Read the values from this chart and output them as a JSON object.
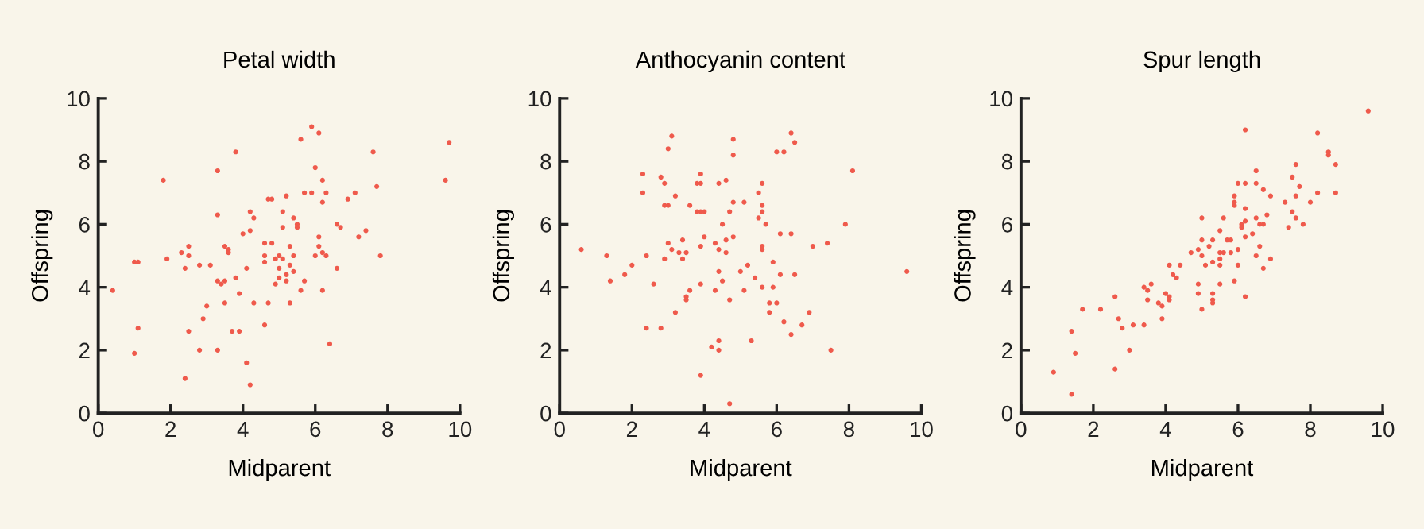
{
  "chart_data": [
    {
      "type": "scatter",
      "title": "Petal width",
      "xlabel": "Midparent",
      "ylabel": "Offspring",
      "color": "#ef5a4c",
      "marker": "circle",
      "xlim": [
        0,
        10
      ],
      "ylim": [
        0,
        10
      ],
      "xticks": [
        0,
        2,
        4,
        6,
        8,
        10
      ],
      "yticks": [
        0,
        2,
        4,
        6,
        8,
        10
      ],
      "x": [
        5.9,
        5.6,
        6.1,
        3.8,
        9.7,
        7.6,
        3.3,
        6.0,
        1.8,
        9.6,
        6.2,
        7.7,
        5.7,
        5.9,
        6.3,
        7.1,
        5.2,
        4.7,
        4.8,
        6.9,
        6.2,
        5.1,
        4.2,
        3.3,
        4.3,
        5.4,
        5.5,
        6.6,
        5.5,
        5.1,
        6.7,
        7.4,
        4.0,
        4.2,
        6.1,
        7.2,
        4.6,
        4.8,
        3.5,
        2.5,
        5.3,
        6.1,
        3.6,
        3.6,
        2.3,
        6.2,
        2.5,
        4.6,
        5.0,
        5.4,
        6.0,
        6.3,
        7.8,
        4.9,
        5.1,
        1.1,
        1.0,
        1.9,
        4.6,
        2.8,
        3.1,
        5.3,
        2.4,
        4.1,
        5.0,
        6.6,
        5.4,
        5.2,
        5.0,
        3.8,
        3.3,
        3.5,
        3.4,
        5.2,
        5.7,
        4.9,
        0.4,
        5.6,
        6.2,
        3.9,
        3.5,
        4.3,
        4.7,
        5.3,
        3.0,
        2.9,
        4.6,
        1.1,
        2.5,
        3.7,
        3.9,
        6.4,
        1.0,
        2.8,
        3.3,
        4.1,
        2.4,
        4.2
      ],
      "values": [
        9.1,
        8.7,
        8.9,
        8.3,
        8.6,
        8.3,
        7.7,
        7.8,
        7.4,
        7.4,
        7.4,
        7.2,
        7.0,
        7.0,
        7.0,
        7.0,
        6.9,
        6.8,
        6.8,
        6.8,
        6.7,
        6.4,
        6.4,
        6.3,
        6.2,
        6.2,
        6.0,
        6.0,
        5.9,
        5.9,
        5.9,
        5.8,
        5.7,
        5.8,
        5.6,
        5.6,
        5.4,
        5.4,
        5.3,
        5.3,
        5.3,
        5.3,
        5.2,
        5.1,
        5.1,
        5.1,
        5.0,
        5.0,
        5.0,
        5.0,
        5.0,
        5.0,
        5.0,
        4.9,
        4.9,
        4.8,
        4.8,
        4.9,
        4.8,
        4.7,
        4.7,
        4.7,
        4.6,
        4.6,
        4.6,
        4.6,
        4.5,
        4.4,
        4.3,
        4.3,
        4.2,
        4.2,
        4.1,
        4.2,
        4.2,
        4.1,
        3.9,
        3.9,
        3.9,
        3.8,
        3.5,
        3.5,
        3.5,
        3.5,
        3.4,
        3.0,
        2.8,
        2.7,
        2.6,
        2.6,
        2.6,
        2.2,
        1.9,
        2.0,
        2.0,
        1.6,
        1.1,
        0.9
      ]
    },
    {
      "type": "scatter",
      "title": "Anthocyanin content",
      "xlabel": "Midparent",
      "ylabel": "Offspring",
      "color": "#ef5a4c",
      "marker": "circle",
      "xlim": [
        0,
        10
      ],
      "ylim": [
        0,
        10
      ],
      "xticks": [
        0,
        2,
        4,
        6,
        8,
        10
      ],
      "yticks": [
        0,
        2,
        4,
        6,
        8,
        10
      ],
      "x": [
        6.4,
        3.1,
        4.8,
        6.5,
        3.0,
        6.0,
        6.2,
        4.8,
        8.1,
        2.3,
        3.9,
        2.8,
        4.6,
        2.9,
        3.8,
        3.9,
        4.4,
        5.6,
        2.3,
        5.5,
        3.2,
        2.9,
        3.0,
        4.8,
        5.1,
        5.6,
        3.6,
        3.8,
        3.9,
        4.0,
        5.6,
        4.7,
        5.5,
        4.5,
        5.7,
        7.9,
        6.1,
        6.4,
        4.0,
        4.8,
        3.4,
        3.0,
        4.6,
        4.3,
        3.9,
        7.0,
        7.4,
        5.6,
        0.6,
        3.1,
        4.4,
        5.6,
        4.6,
        1.3,
        2.4,
        3.3,
        3.5,
        2.9,
        3.4,
        5.9,
        5.2,
        2.0,
        4.4,
        5.0,
        6.1,
        6.5,
        9.6,
        1.8,
        5.4,
        4.5,
        1.4,
        3.9,
        2.6,
        5.6,
        5.9,
        3.6,
        4.3,
        5.1,
        3.5,
        3.5,
        4.7,
        5.8,
        6.0,
        5.8,
        6.9,
        3.2,
        6.2,
        6.7,
        2.4,
        2.8,
        6.4,
        5.3,
        4.4,
        4.2,
        4.4,
        7.5,
        3.9,
        4.7
      ],
      "values": [
        8.9,
        8.8,
        8.7,
        8.6,
        8.4,
        8.3,
        8.3,
        8.2,
        7.7,
        7.6,
        7.6,
        7.5,
        7.4,
        7.3,
        7.3,
        7.3,
        7.3,
        7.3,
        7.0,
        7.0,
        6.9,
        6.6,
        6.6,
        6.7,
        6.7,
        6.6,
        6.6,
        6.4,
        6.4,
        6.4,
        6.4,
        6.4,
        6.2,
        6.0,
        6.0,
        6.0,
        5.7,
        5.7,
        5.6,
        5.6,
        5.5,
        5.4,
        5.5,
        5.4,
        5.3,
        5.3,
        5.4,
        5.3,
        5.2,
        5.2,
        5.2,
        5.2,
        5.1,
        5.0,
        5.0,
        5.1,
        5.1,
        4.9,
        4.9,
        4.8,
        4.7,
        4.7,
        4.5,
        4.5,
        4.4,
        4.4,
        4.5,
        4.4,
        4.3,
        4.2,
        4.2,
        4.1,
        4.1,
        4.0,
        4.0,
        3.9,
        3.9,
        3.9,
        3.7,
        3.6,
        3.6,
        3.5,
        3.5,
        3.2,
        3.2,
        3.2,
        2.9,
        2.8,
        2.7,
        2.7,
        2.5,
        2.3,
        2.3,
        2.1,
        2.0,
        2.0,
        1.2,
        0.3
      ]
    },
    {
      "type": "scatter",
      "title": "Spur length",
      "xlabel": "Midparent",
      "ylabel": "Offspring",
      "color": "#ef5a4c",
      "marker": "circle",
      "xlim": [
        0,
        10
      ],
      "ylim": [
        0,
        10
      ],
      "xticks": [
        0,
        2,
        4,
        6,
        8,
        10
      ],
      "yticks": [
        0,
        2,
        4,
        6,
        8,
        10
      ],
      "x": [
        9.6,
        6.2,
        8.2,
        8.5,
        8.5,
        7.6,
        8.7,
        6.5,
        7.5,
        6.0,
        6.2,
        6.5,
        7.7,
        6.7,
        8.2,
        8.7,
        5.9,
        6.9,
        7.3,
        7.6,
        8.0,
        5.9,
        5.9,
        6.2,
        7.5,
        6.8,
        5.0,
        5.6,
        6.5,
        7.6,
        6.2,
        6.1,
        6.6,
        6.7,
        6.1,
        7.4,
        7.8,
        5.5,
        6.4,
        6.2,
        5.0,
        5.3,
        5.7,
        5.8,
        6.6,
        5.2,
        4.9,
        6.0,
        4.7,
        5.5,
        5.6,
        5.8,
        5.0,
        6.5,
        6.9,
        5.5,
        5.3,
        4.1,
        4.4,
        6.0,
        5.1,
        5.5,
        6.7,
        4.2,
        4.3,
        5.9,
        4.9,
        3.4,
        3.6,
        5.5,
        3.5,
        4.0,
        5.3,
        2.6,
        4.9,
        3.5,
        4.1,
        4.1,
        6.2,
        5.3,
        5.3,
        3.8,
        3.9,
        1.7,
        2.2,
        5.0,
        2.7,
        3.9,
        2.8,
        3.1,
        3.4,
        1.4,
        3.0,
        1.5,
        0.9,
        2.6,
        1.4
      ],
      "values": [
        9.6,
        9.0,
        8.9,
        8.3,
        8.2,
        7.9,
        7.9,
        7.7,
        7.5,
        7.3,
        7.3,
        7.3,
        7.2,
        7.1,
        7.0,
        7.0,
        6.9,
        6.9,
        6.7,
        6.9,
        6.7,
        6.7,
        6.6,
        6.5,
        6.4,
        6.3,
        6.2,
        6.2,
        6.2,
        6.2,
        6.1,
        6.0,
        6.0,
        6.0,
        5.9,
        5.9,
        6.0,
        5.8,
        5.7,
        5.6,
        5.5,
        5.5,
        5.5,
        5.5,
        5.3,
        5.3,
        5.2,
        5.2,
        5.1,
        5.1,
        5.1,
        5.1,
        5.0,
        5.0,
        4.9,
        4.9,
        4.8,
        4.7,
        4.7,
        4.7,
        4.7,
        4.7,
        4.6,
        4.4,
        4.3,
        4.2,
        4.1,
        4.0,
        4.1,
        4.1,
        3.9,
        3.8,
        3.8,
        3.7,
        3.8,
        3.6,
        3.7,
        3.6,
        3.7,
        3.6,
        3.5,
        3.5,
        3.4,
        3.3,
        3.3,
        3.3,
        3.0,
        3.0,
        2.7,
        2.8,
        2.8,
        2.6,
        2.0,
        1.9,
        1.3,
        1.4,
        0.6
      ]
    }
  ]
}
